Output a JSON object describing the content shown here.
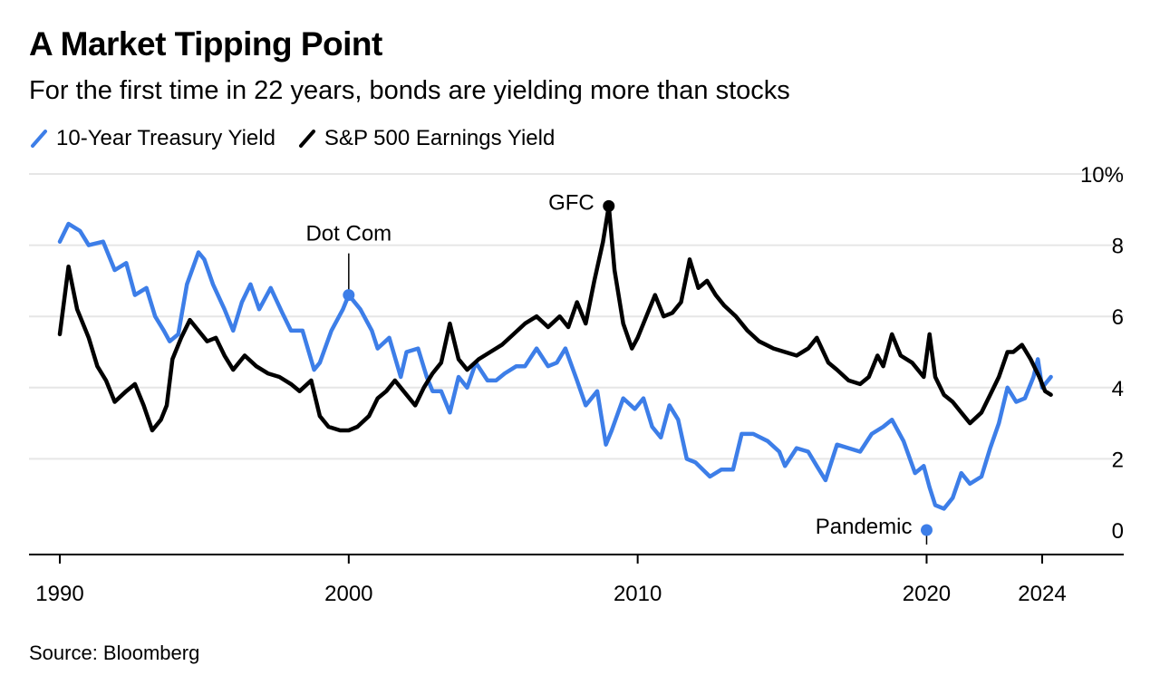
{
  "header": {
    "title": "A Market Tipping Point",
    "subtitle": "For the first time in 22 years, bonds are yielding more than stocks"
  },
  "footer": {
    "source": "Source: Bloomberg"
  },
  "chart_data": {
    "type": "line",
    "title": "A Market Tipping Point",
    "subtitle": "For the first time in 22 years, bonds are yielding more than stocks",
    "legend_position": "top-left",
    "grid": true,
    "y_axis_side": "right",
    "ylim": [
      -0.5,
      10
    ],
    "y_ticks": [
      0,
      2,
      4,
      6,
      8,
      10
    ],
    "y_tick_labels": [
      "0",
      "2",
      "4",
      "6",
      "8",
      "10%"
    ],
    "xlim": [
      1990,
      2027.8
    ],
    "x_ticks": [
      1990,
      2000,
      2010,
      2020,
      2024
    ],
    "x_tick_labels": [
      "1990",
      "2000",
      "2010",
      "2020",
      "2024"
    ],
    "series": [
      {
        "name": "10-Year Treasury Yield",
        "color": "#3d7ee8",
        "points": [
          [
            1990.0,
            8.1
          ],
          [
            1990.3,
            8.6
          ],
          [
            1990.7,
            8.4
          ],
          [
            1991.0,
            8.0
          ],
          [
            1991.5,
            8.1
          ],
          [
            1991.9,
            7.3
          ],
          [
            1992.3,
            7.5
          ],
          [
            1992.6,
            6.6
          ],
          [
            1993.0,
            6.8
          ],
          [
            1993.3,
            6.0
          ],
          [
            1993.6,
            5.6
          ],
          [
            1993.8,
            5.3
          ],
          [
            1994.1,
            5.5
          ],
          [
            1994.4,
            6.9
          ],
          [
            1994.8,
            7.8
          ],
          [
            1995.0,
            7.6
          ],
          [
            1995.3,
            6.9
          ],
          [
            1995.7,
            6.2
          ],
          [
            1996.0,
            5.6
          ],
          [
            1996.3,
            6.4
          ],
          [
            1996.6,
            6.9
          ],
          [
            1996.9,
            6.2
          ],
          [
            1997.3,
            6.8
          ],
          [
            1997.7,
            6.1
          ],
          [
            1998.0,
            5.6
          ],
          [
            1998.4,
            5.6
          ],
          [
            1998.8,
            4.5
          ],
          [
            1999.0,
            4.7
          ],
          [
            1999.4,
            5.6
          ],
          [
            1999.8,
            6.2
          ],
          [
            2000.0,
            6.6
          ],
          [
            2000.4,
            6.2
          ],
          [
            2000.8,
            5.6
          ],
          [
            2001.0,
            5.1
          ],
          [
            2001.4,
            5.4
          ],
          [
            2001.8,
            4.3
          ],
          [
            2002.0,
            5.0
          ],
          [
            2002.4,
            5.1
          ],
          [
            2002.7,
            4.3
          ],
          [
            2002.9,
            3.9
          ],
          [
            2003.2,
            3.9
          ],
          [
            2003.5,
            3.3
          ],
          [
            2003.8,
            4.3
          ],
          [
            2004.1,
            4.0
          ],
          [
            2004.4,
            4.7
          ],
          [
            2004.8,
            4.2
          ],
          [
            2005.1,
            4.2
          ],
          [
            2005.4,
            4.4
          ],
          [
            2005.8,
            4.6
          ],
          [
            2006.1,
            4.6
          ],
          [
            2006.5,
            5.1
          ],
          [
            2006.9,
            4.6
          ],
          [
            2007.2,
            4.7
          ],
          [
            2007.5,
            5.1
          ],
          [
            2007.9,
            4.2
          ],
          [
            2008.2,
            3.5
          ],
          [
            2008.6,
            3.9
          ],
          [
            2008.9,
            2.4
          ],
          [
            2009.1,
            2.8
          ],
          [
            2009.5,
            3.7
          ],
          [
            2009.9,
            3.4
          ],
          [
            2010.2,
            3.7
          ],
          [
            2010.5,
            2.9
          ],
          [
            2010.8,
            2.6
          ],
          [
            2011.1,
            3.5
          ],
          [
            2011.4,
            3.1
          ],
          [
            2011.7,
            2.0
          ],
          [
            2012.0,
            1.9
          ],
          [
            2012.5,
            1.5
          ],
          [
            2012.9,
            1.7
          ],
          [
            2013.3,
            1.7
          ],
          [
            2013.6,
            2.7
          ],
          [
            2014.0,
            2.7
          ],
          [
            2014.5,
            2.5
          ],
          [
            2014.9,
            2.2
          ],
          [
            2015.1,
            1.8
          ],
          [
            2015.5,
            2.3
          ],
          [
            2015.9,
            2.2
          ],
          [
            2016.2,
            1.8
          ],
          [
            2016.5,
            1.4
          ],
          [
            2016.9,
            2.4
          ],
          [
            2017.3,
            2.3
          ],
          [
            2017.7,
            2.2
          ],
          [
            2018.1,
            2.7
          ],
          [
            2018.5,
            2.9
          ],
          [
            2018.8,
            3.1
          ],
          [
            2019.2,
            2.5
          ],
          [
            2019.6,
            1.6
          ],
          [
            2019.9,
            1.8
          ],
          [
            2020.1,
            1.2
          ],
          [
            2020.3,
            0.7
          ],
          [
            2020.6,
            0.6
          ],
          [
            2020.9,
            0.9
          ],
          [
            2021.2,
            1.6
          ],
          [
            2021.5,
            1.3
          ],
          [
            2021.9,
            1.5
          ],
          [
            2022.2,
            2.3
          ],
          [
            2022.5,
            3.0
          ],
          [
            2022.8,
            4.0
          ],
          [
            2023.1,
            3.6
          ],
          [
            2023.4,
            3.7
          ],
          [
            2023.7,
            4.3
          ],
          [
            2023.85,
            4.8
          ],
          [
            2024.0,
            4.0
          ],
          [
            2024.3,
            4.3
          ]
        ]
      },
      {
        "name": "S&P 500 Earnings Yield",
        "color": "#000000",
        "points": [
          [
            1990.0,
            5.5
          ],
          [
            1990.3,
            7.4
          ],
          [
            1990.6,
            6.2
          ],
          [
            1991.0,
            5.4
          ],
          [
            1991.3,
            4.6
          ],
          [
            1991.6,
            4.2
          ],
          [
            1991.9,
            3.6
          ],
          [
            1992.3,
            3.9
          ],
          [
            1992.6,
            4.1
          ],
          [
            1992.9,
            3.5
          ],
          [
            1993.2,
            2.8
          ],
          [
            1993.5,
            3.1
          ],
          [
            1993.7,
            3.5
          ],
          [
            1993.9,
            4.8
          ],
          [
            1994.2,
            5.4
          ],
          [
            1994.5,
            5.9
          ],
          [
            1994.8,
            5.6
          ],
          [
            1995.1,
            5.3
          ],
          [
            1995.4,
            5.4
          ],
          [
            1995.7,
            4.9
          ],
          [
            1996.0,
            4.5
          ],
          [
            1996.4,
            4.9
          ],
          [
            1996.8,
            4.6
          ],
          [
            1997.2,
            4.4
          ],
          [
            1997.6,
            4.3
          ],
          [
            1998.0,
            4.1
          ],
          [
            1998.3,
            3.9
          ],
          [
            1998.7,
            4.2
          ],
          [
            1999.0,
            3.2
          ],
          [
            1999.3,
            2.9
          ],
          [
            1999.7,
            2.8
          ],
          [
            2000.0,
            2.8
          ],
          [
            2000.3,
            2.9
          ],
          [
            2000.7,
            3.2
          ],
          [
            2001.0,
            3.7
          ],
          [
            2001.3,
            3.9
          ],
          [
            2001.6,
            4.2
          ],
          [
            2002.0,
            3.8
          ],
          [
            2002.3,
            3.5
          ],
          [
            2002.6,
            4.0
          ],
          [
            2002.9,
            4.4
          ],
          [
            2003.2,
            4.7
          ],
          [
            2003.5,
            5.8
          ],
          [
            2003.8,
            4.8
          ],
          [
            2004.1,
            4.5
          ],
          [
            2004.5,
            4.8
          ],
          [
            2004.9,
            5.0
          ],
          [
            2005.3,
            5.2
          ],
          [
            2005.7,
            5.5
          ],
          [
            2006.1,
            5.8
          ],
          [
            2006.5,
            6.0
          ],
          [
            2006.9,
            5.7
          ],
          [
            2007.3,
            6.0
          ],
          [
            2007.6,
            5.7
          ],
          [
            2007.9,
            6.4
          ],
          [
            2008.2,
            5.8
          ],
          [
            2008.5,
            7.0
          ],
          [
            2008.8,
            8.1
          ],
          [
            2009.0,
            9.1
          ],
          [
            2009.2,
            7.3
          ],
          [
            2009.5,
            5.8
          ],
          [
            2009.8,
            5.1
          ],
          [
            2010.0,
            5.4
          ],
          [
            2010.3,
            6.0
          ],
          [
            2010.6,
            6.6
          ],
          [
            2010.9,
            6.0
          ],
          [
            2011.2,
            6.1
          ],
          [
            2011.5,
            6.4
          ],
          [
            2011.8,
            7.6
          ],
          [
            2012.1,
            6.8
          ],
          [
            2012.4,
            7.0
          ],
          [
            2012.7,
            6.6
          ],
          [
            2013.0,
            6.3
          ],
          [
            2013.4,
            6.0
          ],
          [
            2013.8,
            5.6
          ],
          [
            2014.2,
            5.3
          ],
          [
            2014.7,
            5.1
          ],
          [
            2015.1,
            5.0
          ],
          [
            2015.5,
            4.9
          ],
          [
            2015.9,
            5.1
          ],
          [
            2016.2,
            5.4
          ],
          [
            2016.6,
            4.7
          ],
          [
            2016.9,
            4.5
          ],
          [
            2017.3,
            4.2
          ],
          [
            2017.7,
            4.1
          ],
          [
            2018.0,
            4.3
          ],
          [
            2018.3,
            4.9
          ],
          [
            2018.5,
            4.6
          ],
          [
            2018.8,
            5.5
          ],
          [
            2019.1,
            4.9
          ],
          [
            2019.5,
            4.7
          ],
          [
            2019.9,
            4.3
          ],
          [
            2020.1,
            5.5
          ],
          [
            2020.3,
            4.3
          ],
          [
            2020.6,
            3.8
          ],
          [
            2020.9,
            3.6
          ],
          [
            2021.2,
            3.3
          ],
          [
            2021.5,
            3.0
          ],
          [
            2021.9,
            3.3
          ],
          [
            2022.2,
            3.8
          ],
          [
            2022.5,
            4.3
          ],
          [
            2022.8,
            5.0
          ],
          [
            2023.0,
            5.0
          ],
          [
            2023.3,
            5.2
          ],
          [
            2023.6,
            4.8
          ],
          [
            2023.9,
            4.3
          ],
          [
            2024.1,
            3.9
          ],
          [
            2024.3,
            3.8
          ]
        ]
      }
    ],
    "annotations": [
      {
        "label": "Dot Com",
        "series": 0,
        "x": 2000.0,
        "y": 6.6,
        "style": "label-above"
      },
      {
        "label": "GFC",
        "series": 1,
        "x": 2009.0,
        "y": 9.1,
        "style": "label-left"
      },
      {
        "label": "Pandemic",
        "series": 0,
        "x": 2020.0,
        "y": 0.0,
        "style": "label-left"
      }
    ]
  }
}
